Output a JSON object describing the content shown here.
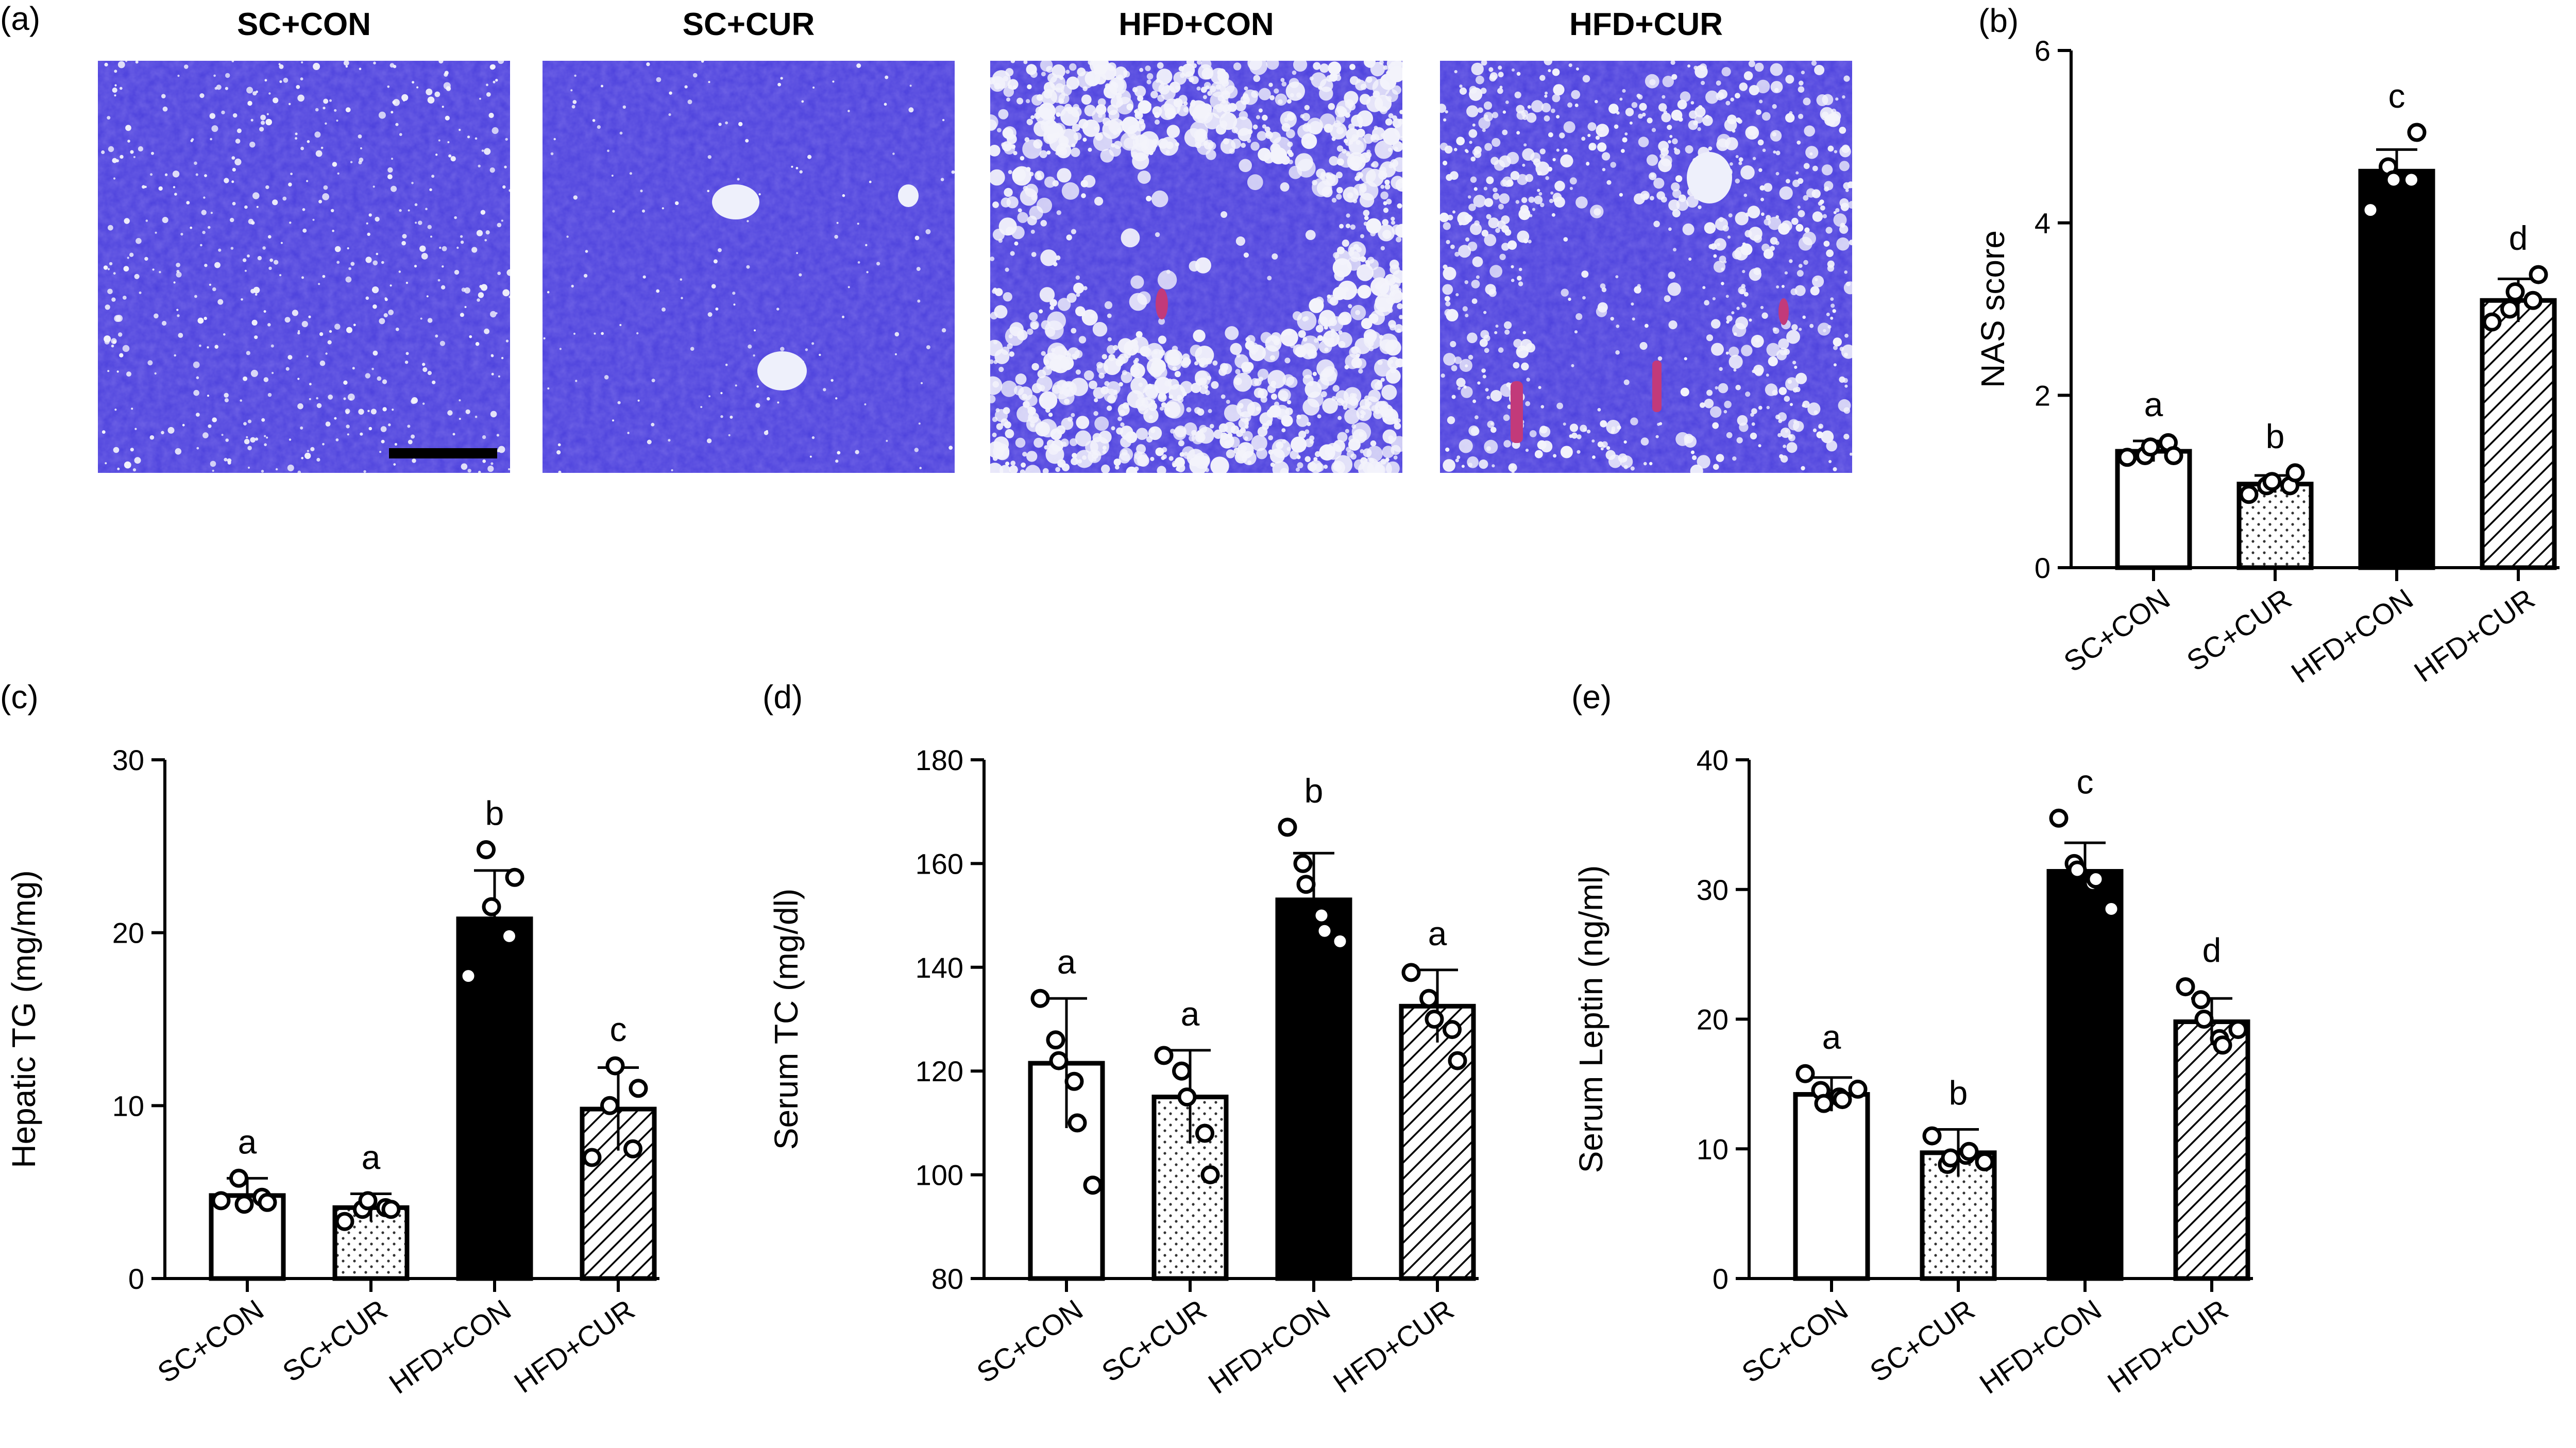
{
  "panel_a": {
    "letter": "(a)",
    "titles": [
      "SC+CON",
      "SC+CUR",
      "HFD+CON",
      "HFD+CUR"
    ]
  },
  "chart_data": [
    {
      "panel": "(b)",
      "type": "bar",
      "ylabel": "NAS score",
      "ylim": [
        0,
        6
      ],
      "yticks": [
        0,
        2,
        4,
        6
      ],
      "categories": [
        "SC+CON",
        "SC+CUR",
        "HFD+CON",
        "HFD+CUR"
      ],
      "values": [
        1.35,
        0.97,
        4.6,
        3.1
      ],
      "errors": [
        0.12,
        0.1,
        0.25,
        0.25
      ],
      "points": [
        [
          1.28,
          1.3,
          1.4,
          1.45,
          1.3
        ],
        [
          0.85,
          0.95,
          1.0,
          0.95,
          1.1
        ],
        [
          4.15,
          4.65,
          4.5,
          4.5,
          5.05
        ],
        [
          2.85,
          3.0,
          3.2,
          3.1,
          3.4
        ]
      ],
      "letters": [
        "a",
        "b",
        "c",
        "d"
      ],
      "fills": [
        "white",
        "dots",
        "black",
        "hatch"
      ],
      "grid": false
    },
    {
      "panel": "(c)",
      "type": "bar",
      "ylabel": "Hepatic TG (mg/mg)",
      "ylim": [
        0,
        30
      ],
      "yticks": [
        0,
        10,
        20,
        30
      ],
      "categories": [
        "SC+CON",
        "SC+CUR",
        "HFD+CON",
        "HFD+CUR"
      ],
      "values": [
        4.8,
        4.1,
        20.8,
        9.8
      ],
      "errors": [
        1.0,
        0.8,
        2.8,
        2.4
      ],
      "points": [
        [
          4.5,
          5.8,
          4.3,
          4.7,
          4.4
        ],
        [
          3.3,
          4.0,
          4.5,
          4.1,
          4.0
        ],
        [
          17.5,
          24.8,
          21.5,
          19.8,
          23.2
        ],
        [
          7.0,
          10.0,
          12.3,
          7.5,
          11.0
        ]
      ],
      "letters": [
        "a",
        "a",
        "b",
        "c"
      ],
      "fills": [
        "white",
        "dots",
        "black",
        "hatch"
      ],
      "grid": false
    },
    {
      "panel": "(d)",
      "type": "bar",
      "ylabel": "Serum TC (mg/dl)",
      "ylim": [
        80,
        180
      ],
      "yticks": [
        80,
        100,
        120,
        140,
        160,
        180
      ],
      "categories": [
        "SC+CON",
        "SC+CUR",
        "HFD+CON",
        "HFD+CUR"
      ],
      "values": [
        121.5,
        115,
        153,
        132.5
      ],
      "errors": [
        12.5,
        9,
        9,
        7
      ],
      "points": [
        [
          134,
          126,
          122,
          118,
          110,
          98
        ],
        [
          123,
          120,
          115,
          108,
          100
        ],
        [
          167,
          160,
          156,
          150,
          147,
          145
        ],
        [
          139,
          134,
          130,
          128,
          122
        ]
      ],
      "letters": [
        "a",
        "a",
        "b",
        "a"
      ],
      "fills": [
        "white",
        "dots",
        "black",
        "hatch"
      ],
      "grid": false
    },
    {
      "panel": "(e)",
      "type": "bar",
      "ylabel": "Serum Leptin (ng/ml)",
      "ylim": [
        0,
        40
      ],
      "yticks": [
        0,
        10,
        20,
        30,
        40
      ],
      "categories": [
        "SC+CON",
        "SC+CUR",
        "HFD+CON",
        "HFD+CUR"
      ],
      "values": [
        14.2,
        9.7,
        31.4,
        19.8
      ],
      "errors": [
        1.3,
        1.8,
        2.2,
        1.8
      ],
      "points": [
        [
          15.8,
          14.5,
          13.5,
          14.0,
          13.8,
          14.6
        ],
        [
          11.0,
          8.8,
          9.3,
          9.5,
          9.8,
          9.0
        ],
        [
          35.5,
          32.0,
          31.5,
          30.5,
          30.8,
          28.5
        ],
        [
          22.5,
          21.5,
          20.0,
          18.5,
          18.0,
          19.2
        ]
      ],
      "letters": [
        "a",
        "b",
        "c",
        "d"
      ],
      "fills": [
        "white",
        "dots",
        "black",
        "hatch"
      ],
      "grid": false
    }
  ]
}
